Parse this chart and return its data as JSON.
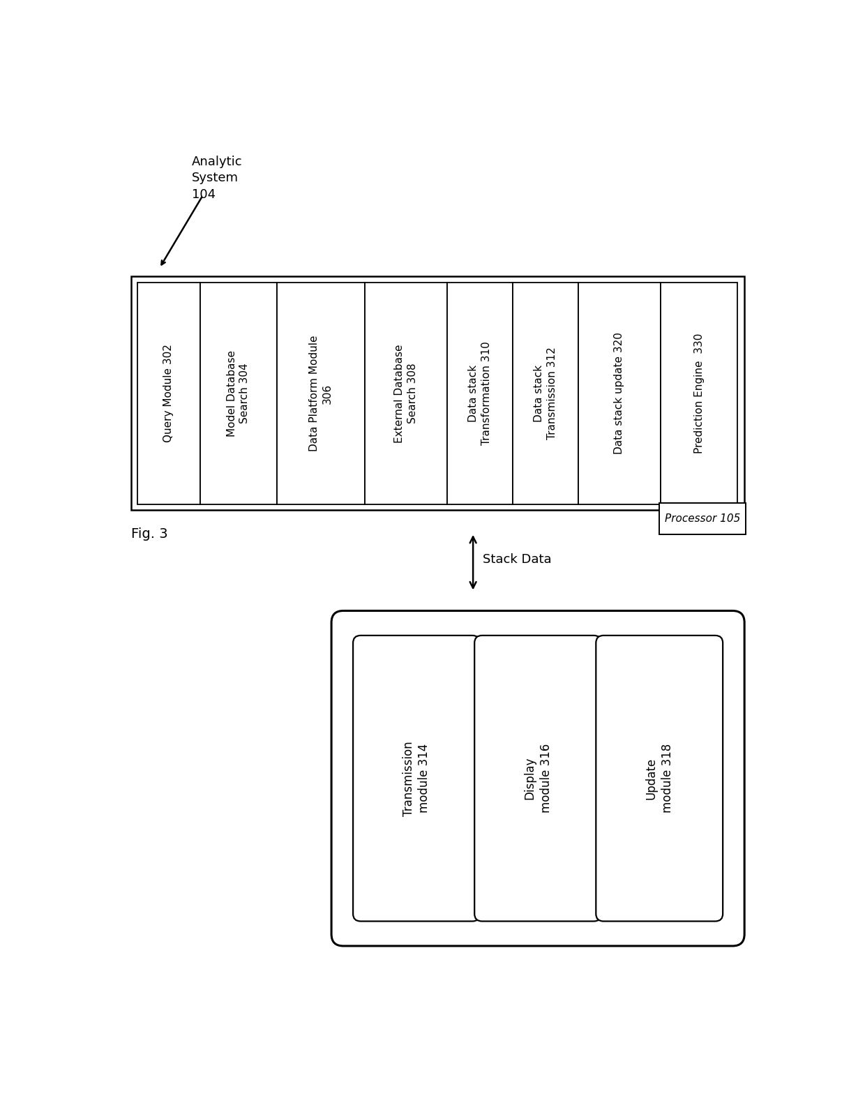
{
  "bg_color": "#ffffff",
  "fig_label": "Fig. 3",
  "analytic_label": "Analytic\nSystem\n104",
  "processor_label": "Processor 105",
  "modules": [
    "Query Module 302",
    "Model Database\nSearch 304",
    "Data Platform Module\n306",
    "External Database\nSearch 308",
    "Data stack\nTransformation 310",
    "Data stack\nTransmission 312",
    "Data stack update 320",
    "Prediction Engine  330"
  ],
  "bottom_modules": [
    "Transmission\nmodule 314",
    "Display\nmodule 316",
    "Update\nmodule 318"
  ],
  "stack_data_label": "Stack Data",
  "text_color": "#000000",
  "font_size": 11,
  "font_size_small": 10,
  "font_size_large": 13,
  "mod_widths": [
    1.1,
    1.35,
    1.55,
    1.45,
    1.15,
    1.15,
    1.45,
    1.35
  ]
}
